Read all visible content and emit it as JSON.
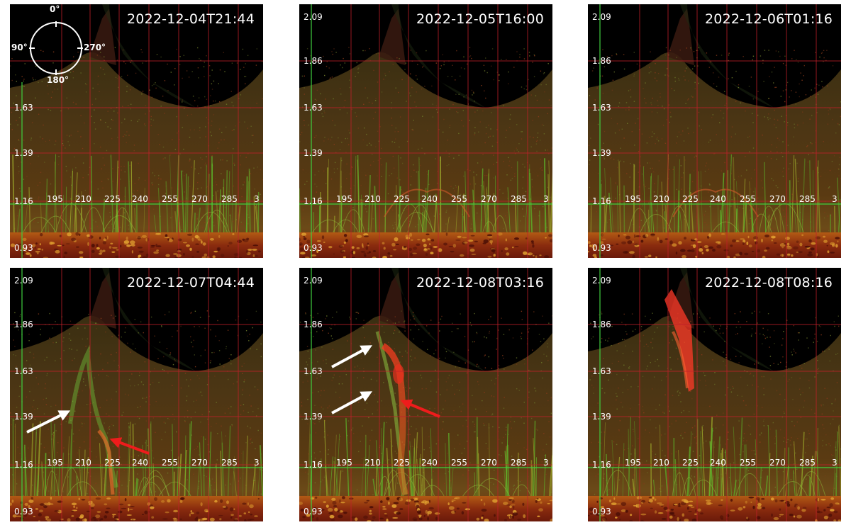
{
  "panels": [
    {
      "timestamp": "2022-12-04T21:44",
      "show_compass": true,
      "show_top_y": false,
      "flux_rope": "none"
    },
    {
      "timestamp": "2022-12-05T16:00",
      "show_compass": false,
      "show_top_y": true,
      "flux_rope": "faint"
    },
    {
      "timestamp": "2022-12-06T01:16",
      "show_compass": false,
      "show_top_y": true,
      "flux_rope": "faint"
    },
    {
      "timestamp": "2022-12-07T04:44",
      "show_compass": false,
      "show_top_y": true,
      "flux_rope": "rising",
      "arrows": [
        {
          "color": "white"
        },
        {
          "color": "red"
        }
      ]
    },
    {
      "timestamp": "2022-12-08T03:16",
      "show_compass": false,
      "show_top_y": true,
      "flux_rope": "erupting",
      "arrows": [
        {
          "color": "white"
        },
        {
          "color": "white"
        },
        {
          "color": "red"
        }
      ]
    },
    {
      "timestamp": "2022-12-08T08:16",
      "show_compass": false,
      "show_top_y": true,
      "flux_rope": "ejected"
    }
  ],
  "y_ticks": [
    "2.09",
    "1.86",
    "1.63",
    "1.39",
    "1.16",
    "0.93"
  ],
  "x_ticks": [
    "195",
    "210",
    "225",
    "240",
    "255",
    "270",
    "285",
    "3"
  ],
  "compass": {
    "top": "0°",
    "left": "90°",
    "right": "270°",
    "bottom": "180°"
  },
  "colors": {
    "grid": "#c0202a",
    "axis": "#3fcf3f",
    "limb": "#c2401a",
    "background": "#000000"
  }
}
